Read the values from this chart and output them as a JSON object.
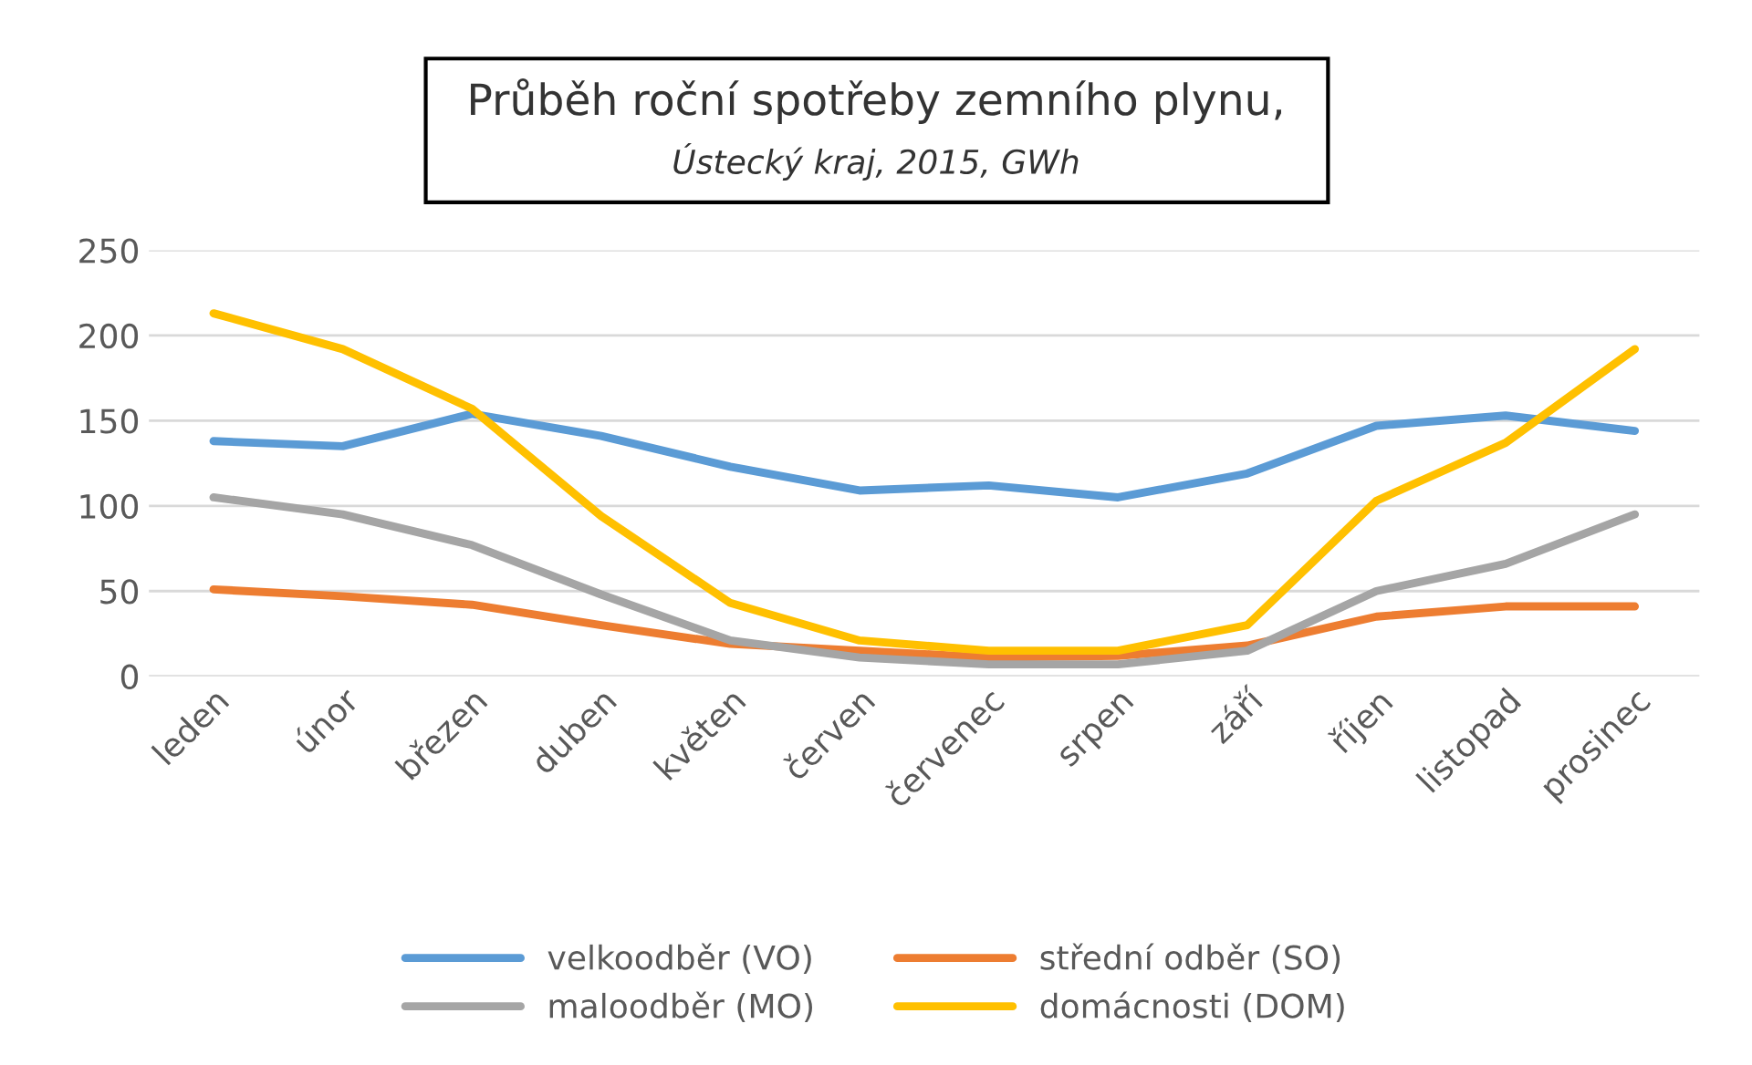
{
  "chart_data": {
    "type": "line",
    "title": "Průběh roční spotřeby zemního plynu,",
    "subtitle": "Ústecký kraj, 2015, GWh",
    "categories": [
      "leden",
      "únor",
      "březen",
      "duben",
      "květen",
      "červen",
      "červenec",
      "srpen",
      "září",
      "říjen",
      "listopad",
      "prosinec"
    ],
    "series": [
      {
        "name": "velkoodběr (VO)",
        "color": "#5b9bd5",
        "values": [
          138,
          135,
          154,
          141,
          123,
          109,
          112,
          105,
          119,
          147,
          153,
          144
        ]
      },
      {
        "name": "střední odběr (SO)",
        "color": "#ed7d31",
        "values": [
          51,
          47,
          42,
          30,
          19,
          15,
          11,
          12,
          18,
          35,
          41,
          41
        ]
      },
      {
        "name": "maloodběr (MO)",
        "color": "#a5a5a5",
        "values": [
          105,
          95,
          77,
          48,
          21,
          11,
          7,
          7,
          15,
          50,
          66,
          95
        ]
      },
      {
        "name": "domácnosti (DOM)",
        "color": "#ffc000",
        "values": [
          213,
          192,
          157,
          94,
          43,
          21,
          15,
          15,
          30,
          103,
          137,
          192
        ]
      }
    ],
    "ylim": [
      0,
      250
    ],
    "yticks": [
      0,
      50,
      100,
      150,
      200,
      250
    ],
    "grid": "y",
    "legend": "bottom",
    "marker": "none",
    "line_style": "solid"
  }
}
